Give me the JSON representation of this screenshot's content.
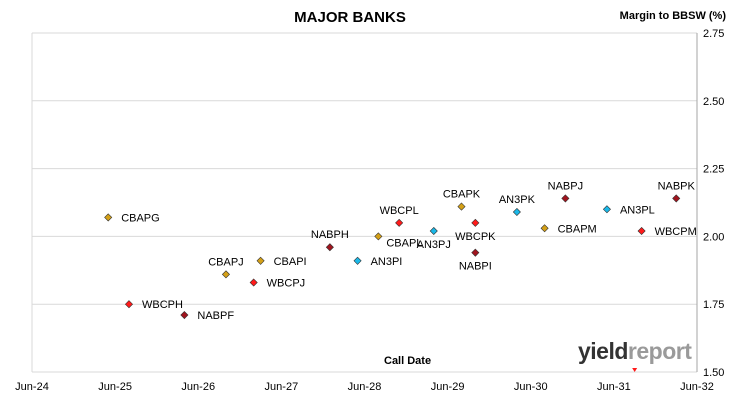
{
  "chart_data": {
    "type": "scatter",
    "title": "MAJOR BANKS",
    "ylabel": "Margin to BBSW (%)",
    "xlabel": "Call Date",
    "xlim": [
      "2024-06",
      "2032-06"
    ],
    "ylim": [
      1.5,
      2.75
    ],
    "x_ticks": [
      "Jun-24",
      "Jun-25",
      "Jun-26",
      "Jun-27",
      "Jun-28",
      "Jun-29",
      "Jun-30",
      "Jun-31",
      "Jun-32"
    ],
    "y_ticks": [
      "1.50",
      "1.75",
      "2.00",
      "2.25",
      "2.50",
      "2.75"
    ],
    "grid": "horizontal",
    "legend": "none",
    "colors": {
      "CBA": "#d4a017",
      "WBC": "#ff1a1a",
      "NAB": "#a0141e",
      "ANZ": "#1ab8e8",
      "gridline": "#d9d9d9"
    },
    "points": [
      {
        "label": "CBAPG",
        "date": "2025-05",
        "y": 2.07,
        "issuer": "CBA",
        "label_side": "right"
      },
      {
        "label": "WBCPH",
        "date": "2025-08",
        "y": 1.75,
        "issuer": "WBC",
        "label_side": "right"
      },
      {
        "label": "NABPF",
        "date": "2026-04",
        "y": 1.71,
        "issuer": "NAB",
        "label_side": "right"
      },
      {
        "label": "CBAPJ",
        "date": "2026-10",
        "y": 1.86,
        "issuer": "CBA",
        "label_side": "above"
      },
      {
        "label": "WBCPJ",
        "date": "2027-02",
        "y": 1.83,
        "issuer": "WBC",
        "label_side": "right"
      },
      {
        "label": "CBAPI",
        "date": "2027-03",
        "y": 1.91,
        "issuer": "CBA",
        "label_side": "right"
      },
      {
        "label": "NABPH",
        "date": "2028-01",
        "y": 1.96,
        "issuer": "NAB",
        "label_side": "above"
      },
      {
        "label": "AN3PI",
        "date": "2028-05",
        "y": 1.91,
        "issuer": "ANZ",
        "label_side": "right"
      },
      {
        "label": "CBAPL",
        "date": "2028-08",
        "y": 2.0,
        "issuer": "CBA",
        "label_side": "right-below"
      },
      {
        "label": "WBCPL",
        "date": "2028-11",
        "y": 2.05,
        "issuer": "WBC",
        "label_side": "above"
      },
      {
        "label": "AN3PJ",
        "date": "2029-04",
        "y": 2.02,
        "issuer": "ANZ",
        "label_side": "below"
      },
      {
        "label": "CBAPK",
        "date": "2029-08",
        "y": 2.11,
        "issuer": "CBA",
        "label_side": "above"
      },
      {
        "label": "WBCPK",
        "date": "2029-10",
        "y": 2.05,
        "issuer": "WBC",
        "label_side": "below"
      },
      {
        "label": "NABPI",
        "date": "2029-10",
        "y": 1.94,
        "issuer": "NAB",
        "label_side": "below"
      },
      {
        "label": "AN3PK",
        "date": "2030-04",
        "y": 2.09,
        "issuer": "ANZ",
        "label_side": "above"
      },
      {
        "label": "CBAPM",
        "date": "2030-08",
        "y": 2.03,
        "issuer": "CBA",
        "label_side": "right"
      },
      {
        "label": "NABPJ",
        "date": "2030-11",
        "y": 2.14,
        "issuer": "NAB",
        "label_side": "above"
      },
      {
        "label": "AN3PL",
        "date": "2031-05",
        "y": 2.1,
        "issuer": "ANZ",
        "label_side": "right"
      },
      {
        "label": "WBCPM",
        "date": "2031-10",
        "y": 2.02,
        "issuer": "WBC",
        "label_side": "right"
      },
      {
        "label": "NABPK",
        "date": "2032-03",
        "y": 2.14,
        "issuer": "NAB",
        "label_side": "above"
      }
    ]
  },
  "logo": {
    "part1": "yield",
    "part2": "report"
  }
}
